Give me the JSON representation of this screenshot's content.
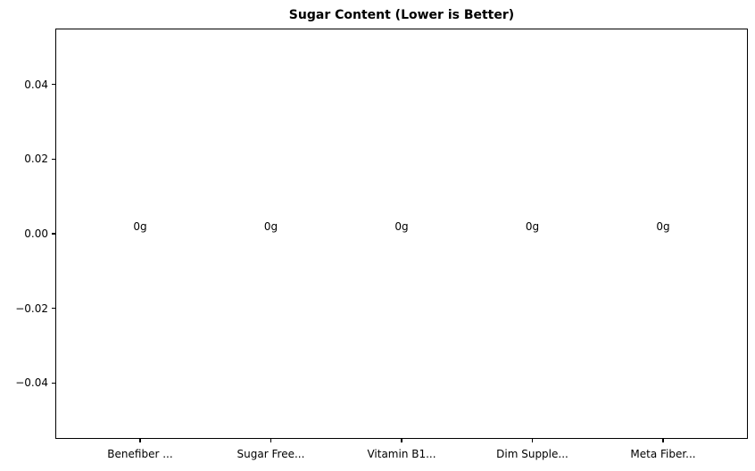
{
  "chart_data": {
    "type": "bar",
    "title": "Sugar Content (Lower is Better)",
    "categories": [
      "Benefiber ...",
      "Sugar Free...",
      "Vitamin B1...",
      "Dim Supple...",
      "Meta Fiber..."
    ],
    "values": [
      0,
      0,
      0,
      0,
      0
    ],
    "bar_value_labels": [
      "0g",
      "0g",
      "0g",
      "0g",
      "0g"
    ],
    "xlabel": "",
    "ylabel": "",
    "ylim": [
      -0.055,
      0.055
    ],
    "yticks": [
      {
        "value": 0.04,
        "label": "0.04"
      },
      {
        "value": 0.02,
        "label": "0.02"
      },
      {
        "value": 0.0,
        "label": "0.00"
      },
      {
        "value": -0.02,
        "label": "−0.02"
      },
      {
        "value": -0.04,
        "label": "−0.04"
      }
    ],
    "grid": false,
    "legend": false,
    "colors": {
      "text": "#000000",
      "axis": "#000000",
      "background": "#ffffff"
    }
  }
}
